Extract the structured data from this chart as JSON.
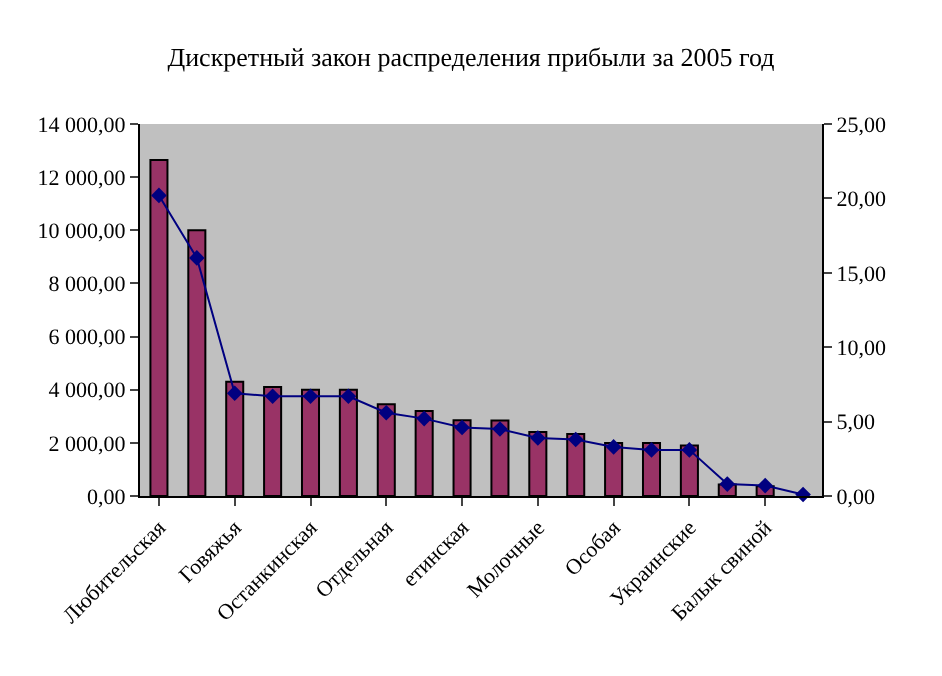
{
  "chart_data": {
    "type": "bar",
    "title": "Дискретный закон распределения прибыли за 2005 год",
    "categories": [
      "Любительская",
      null,
      "Говяжья",
      null,
      "Останкинская",
      null,
      "Отдельная",
      null,
      "етинская",
      null,
      "Молочные",
      null,
      "Особая",
      null,
      "Украинские",
      null,
      "Балык свиной",
      null
    ],
    "series": [
      {
        "color": "#993366",
        "values": [
          12650,
          10000,
          4300,
          4100,
          4000,
          4000,
          3450,
          3200,
          2850,
          2840,
          2410,
          2330,
          1990,
          1990,
          1900,
          430,
          370,
          null
        ]
      },
      {
        "type": "line",
        "axis": "y2",
        "color": "#000080",
        "marker": "diamond",
        "values": [
          20.2,
          16.0,
          6.9,
          6.7,
          6.7,
          6.7,
          5.6,
          5.2,
          4.6,
          4.5,
          3.9,
          3.8,
          3.3,
          3.1,
          3.1,
          0.8,
          0.7,
          0.1
        ]
      }
    ],
    "ylim": [
      0,
      14000
    ],
    "yticks": [
      {
        "value": 0,
        "label": "0,00"
      },
      {
        "value": 2000,
        "label": "2 000,00"
      },
      {
        "value": 4000,
        "label": "4 000,00"
      },
      {
        "value": 6000,
        "label": "6 000,00"
      },
      {
        "value": 8000,
        "label": "8 000,00"
      },
      {
        "value": 10000,
        "label": "10 000,00"
      },
      {
        "value": 12000,
        "label": "12 000,00"
      },
      {
        "value": 14000,
        "label": "14 000,00"
      }
    ],
    "y2lim": [
      0,
      25
    ],
    "y2ticks": [
      {
        "value": 0,
        "label": "0,00"
      },
      {
        "value": 5,
        "label": "5,00"
      },
      {
        "value": 10,
        "label": "10,00"
      },
      {
        "value": 15,
        "label": "15,00"
      },
      {
        "value": 20,
        "label": "20,00"
      },
      {
        "value": 25,
        "label": "25,00"
      }
    ],
    "grid": false
  }
}
